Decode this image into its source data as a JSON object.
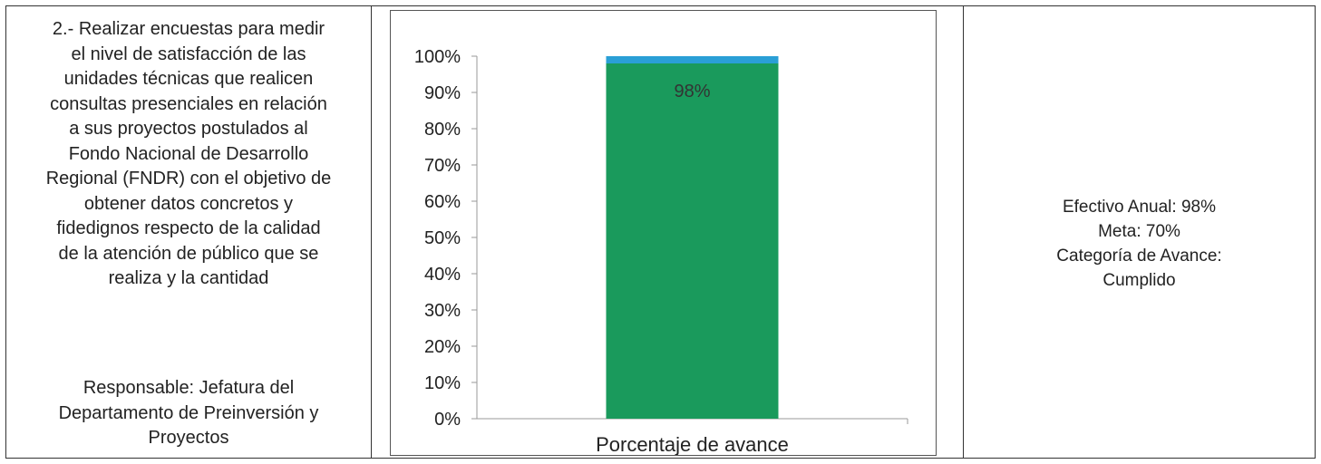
{
  "activity": {
    "lines": [
      "2.- Realizar encuestas para medir",
      "el nivel de satisfacción de las",
      "unidades técnicas que realicen",
      "consultas presenciales en relación",
      "a sus proyectos postulados al",
      "Fondo Nacional de Desarrollo",
      "Regional (FNDR) con el objetivo de",
      "obtener datos concretos y",
      "fidedignos respecto de la calidad",
      "de la atención de público que se",
      "realiza y la cantidad"
    ],
    "responsible_lines": [
      "Responsable: Jefatura del",
      "Departamento de Preinversión y",
      "Proyectos"
    ]
  },
  "chart_data": {
    "type": "bar",
    "stacked": true,
    "categories": [
      "Porcentaje de avance"
    ],
    "series": [
      {
        "values": [
          98
        ],
        "color": "#1a9a5c",
        "data_label": "98%"
      },
      {
        "values": [
          2
        ],
        "color": "#2a9fd6"
      }
    ],
    "y_ticks": [
      "0%",
      "10%",
      "20%",
      "30%",
      "40%",
      "50%",
      "60%",
      "70%",
      "80%",
      "90%",
      "100%"
    ],
    "ylim": [
      0,
      100
    ],
    "xlabel": "Porcentaje de avance",
    "ylabel": "",
    "title": "",
    "grid": false,
    "legend": "none"
  },
  "summary": {
    "efectivo_label": "Efectivo Anual:",
    "efectivo_value": "98%",
    "meta_label": "Meta:",
    "meta_value": "70%",
    "categoria_label": "Categoría de Avance:",
    "categoria_value": "Cumplido"
  }
}
